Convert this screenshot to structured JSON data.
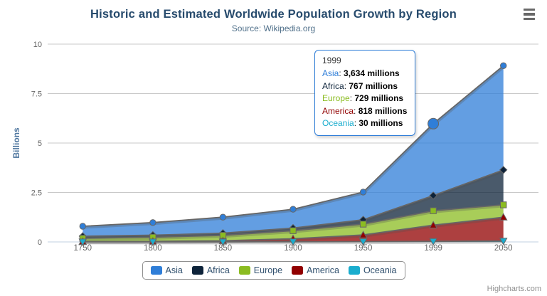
{
  "chart_data": {
    "type": "area",
    "stacking": "normal",
    "title": "Historic and Estimated Worldwide Population Growth by Region",
    "subtitle": "Source: Wikipedia.org",
    "categories": [
      "1750",
      "1800",
      "1850",
      "1900",
      "1950",
      "1999",
      "2050"
    ],
    "xlabel": "",
    "ylabel": "Billions",
    "ylim": [
      0,
      10
    ],
    "yticks": [
      0,
      2.5,
      5,
      7.5,
      10
    ],
    "values_unit": "millions",
    "grid": "horizontal",
    "legend_position": "bottom",
    "stack_order_bottom_to_top": [
      "Oceania",
      "America",
      "Europe",
      "Africa",
      "Asia"
    ],
    "series": [
      {
        "name": "Asia",
        "color": "#2f7ed8",
        "marker": "circle",
        "values": [
          502,
          635,
          809,
          947,
          1402,
          3634,
          5268
        ]
      },
      {
        "name": "Africa",
        "color": "#0d233a",
        "marker": "diamond",
        "values": [
          106,
          107,
          111,
          133,
          221,
          767,
          1766
        ]
      },
      {
        "name": "Europe",
        "color": "#8bbc21",
        "marker": "square",
        "values": [
          163,
          203,
          276,
          408,
          547,
          729,
          628
        ]
      },
      {
        "name": "America",
        "color": "#910000",
        "marker": "triangle",
        "values": [
          18,
          31,
          54,
          156,
          339,
          818,
          1201
        ]
      },
      {
        "name": "Oceania",
        "color": "#1aadce",
        "marker": "triangle-down",
        "values": [
          2,
          2,
          2,
          6,
          13,
          30,
          46
        ]
      }
    ]
  },
  "tooltip": {
    "category": "1999",
    "hover_series": "Asia",
    "rows": [
      {
        "name": "Asia",
        "value": "3,634 millions"
      },
      {
        "name": "Africa",
        "value": "767 millions"
      },
      {
        "name": "Europe",
        "value": "729 millions"
      },
      {
        "name": "America",
        "value": "818 millions"
      },
      {
        "name": "Oceania",
        "value": "30 millions"
      }
    ]
  },
  "credits": {
    "label": "Highcharts.com"
  },
  "colors": {
    "title": "#274b6d",
    "subtitle": "#50708a",
    "axis_label": "#666666",
    "y_axis_title": "#4d759e",
    "grid_line": "#c9c9c9",
    "axis_line": "#c0d0e0",
    "series_line": "#666666",
    "legend_text": "#30506e",
    "credits_text": "#909090",
    "tooltip_border": "#2f7ed8"
  }
}
